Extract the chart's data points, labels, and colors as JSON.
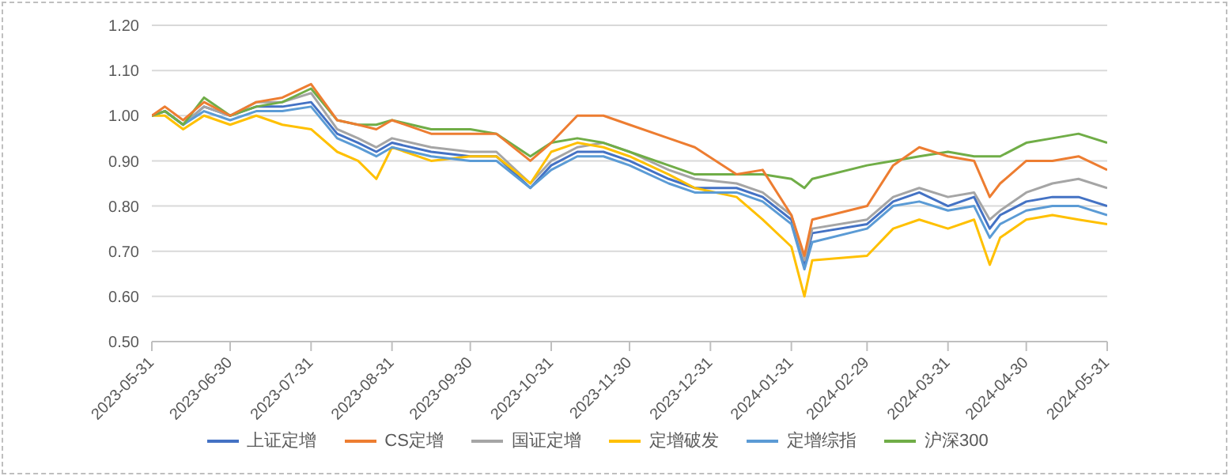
{
  "chart_data": {
    "type": "line",
    "x": [
      "2023-05-31",
      "2023-06-05",
      "2023-06-12",
      "2023-06-20",
      "2023-06-30",
      "2023-07-10",
      "2023-07-20",
      "2023-07-31",
      "2023-08-10",
      "2023-08-18",
      "2023-08-25",
      "2023-08-31",
      "2023-09-15",
      "2023-09-30",
      "2023-10-10",
      "2023-10-23",
      "2023-10-31",
      "2023-11-10",
      "2023-11-20",
      "2023-11-30",
      "2023-12-15",
      "2023-12-25",
      "2024-01-10",
      "2024-01-20",
      "2024-01-31",
      "2024-02-05",
      "2024-02-08",
      "2024-02-29",
      "2024-03-10",
      "2024-03-20",
      "2024-03-31",
      "2024-04-10",
      "2024-04-16",
      "2024-04-20",
      "2024-04-30",
      "2024-05-10",
      "2024-05-20",
      "2024-05-31"
    ],
    "series": [
      {
        "name": "上证定增",
        "color": "#4472c4",
        "values": [
          1.0,
          1.01,
          0.98,
          1.02,
          1.0,
          1.02,
          1.02,
          1.03,
          0.96,
          0.94,
          0.92,
          0.94,
          0.92,
          0.91,
          0.91,
          0.84,
          0.89,
          0.92,
          0.92,
          0.9,
          0.86,
          0.84,
          0.84,
          0.82,
          0.77,
          0.67,
          0.74,
          0.76,
          0.81,
          0.83,
          0.8,
          0.82,
          0.75,
          0.78,
          0.81,
          0.82,
          0.82,
          0.8
        ]
      },
      {
        "name": "CS定增",
        "color": "#ed7d31",
        "values": [
          1.0,
          1.02,
          0.99,
          1.03,
          1.0,
          1.03,
          1.04,
          1.07,
          0.99,
          0.98,
          0.97,
          0.99,
          0.96,
          0.96,
          0.96,
          0.9,
          0.94,
          1.0,
          1.0,
          0.98,
          0.95,
          0.93,
          0.87,
          0.88,
          0.78,
          0.69,
          0.77,
          0.8,
          0.89,
          0.93,
          0.91,
          0.9,
          0.82,
          0.85,
          0.9,
          0.9,
          0.91,
          0.88
        ]
      },
      {
        "name": "国证定增",
        "color": "#a5a5a5",
        "values": [
          1.0,
          1.01,
          0.98,
          1.02,
          1.0,
          1.03,
          1.03,
          1.05,
          0.97,
          0.95,
          0.93,
          0.95,
          0.93,
          0.92,
          0.92,
          0.85,
          0.9,
          0.93,
          0.94,
          0.92,
          0.88,
          0.86,
          0.85,
          0.83,
          0.78,
          0.68,
          0.75,
          0.77,
          0.82,
          0.84,
          0.82,
          0.83,
          0.77,
          0.79,
          0.83,
          0.85,
          0.86,
          0.84
        ]
      },
      {
        "name": "定增破发",
        "color": "#ffc000",
        "values": [
          1.0,
          1.0,
          0.97,
          1.0,
          0.98,
          1.0,
          0.98,
          0.97,
          0.92,
          0.9,
          0.86,
          0.93,
          0.9,
          0.91,
          0.91,
          0.85,
          0.92,
          0.94,
          0.93,
          0.91,
          0.87,
          0.84,
          0.82,
          0.77,
          0.71,
          0.6,
          0.68,
          0.69,
          0.75,
          0.77,
          0.75,
          0.77,
          0.67,
          0.73,
          0.77,
          0.78,
          0.77,
          0.76
        ]
      },
      {
        "name": "定增综指",
        "color": "#5b9bd5",
        "values": [
          1.0,
          1.01,
          0.98,
          1.01,
          0.99,
          1.01,
          1.01,
          1.02,
          0.95,
          0.93,
          0.91,
          0.93,
          0.91,
          0.9,
          0.9,
          0.84,
          0.88,
          0.91,
          0.91,
          0.89,
          0.85,
          0.83,
          0.83,
          0.81,
          0.76,
          0.66,
          0.72,
          0.75,
          0.8,
          0.81,
          0.79,
          0.8,
          0.73,
          0.76,
          0.79,
          0.8,
          0.8,
          0.78
        ]
      },
      {
        "name": "沪深300",
        "color": "#70ad47",
        "values": [
          1.0,
          1.01,
          0.98,
          1.04,
          1.0,
          1.02,
          1.03,
          1.06,
          0.99,
          0.98,
          0.98,
          0.99,
          0.97,
          0.97,
          0.96,
          0.91,
          0.94,
          0.95,
          0.94,
          0.92,
          0.89,
          0.87,
          0.87,
          0.87,
          0.86,
          0.84,
          0.86,
          0.89,
          0.9,
          0.91,
          0.92,
          0.91,
          0.91,
          0.91,
          0.94,
          0.95,
          0.96,
          0.94
        ]
      }
    ],
    "xlim": [
      "2023-05-31",
      "2024-05-31"
    ],
    "xticks": [
      "2023-05-31",
      "2023-06-30",
      "2023-07-31",
      "2023-08-31",
      "2023-09-30",
      "2023-10-31",
      "2023-11-30",
      "2023-12-31",
      "2024-01-31",
      "2024-02-29",
      "2024-03-31",
      "2024-04-30",
      "2024-05-31"
    ],
    "ylim": [
      0.5,
      1.2
    ],
    "yticks": [
      {
        "value": 0.5,
        "label": "0.50"
      },
      {
        "value": 0.6,
        "label": "0.60"
      },
      {
        "value": 0.7,
        "label": "0.70"
      },
      {
        "value": 0.8,
        "label": "0.80"
      },
      {
        "value": 0.9,
        "label": "0.90"
      },
      {
        "value": 1.0,
        "label": "1.00"
      },
      {
        "value": 1.1,
        "label": "1.10"
      },
      {
        "value": 1.2,
        "label": "1.20"
      }
    ],
    "grid": "y",
    "legend": "bottom",
    "line_style": "solid"
  }
}
